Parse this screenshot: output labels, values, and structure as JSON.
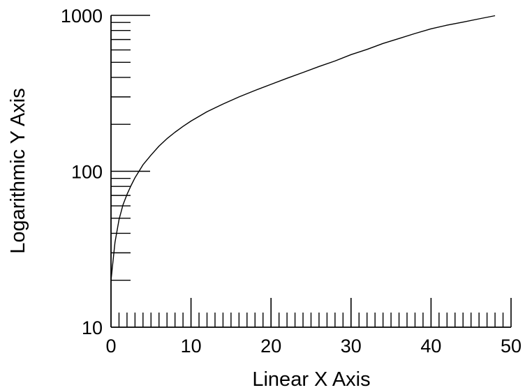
{
  "chart_data": {
    "type": "line",
    "title": "",
    "xlabel": "Linear X Axis",
    "ylabel": "Logarithmic Y Axis",
    "xlim": [
      0,
      50
    ],
    "ylim": [
      10,
      1000
    ],
    "yscale": "log",
    "grid": false,
    "legend": "none",
    "x_tick_labels": [
      "0",
      "10",
      "20",
      "30",
      "40",
      "50"
    ],
    "y_tick_labels": [
      "10",
      "100",
      "1000"
    ],
    "series": [
      {
        "x": [
          0,
          0.5,
          1,
          1.5,
          2,
          2.5,
          3,
          3.5,
          4,
          5,
          6,
          7,
          8,
          9,
          10,
          12,
          14,
          16,
          18,
          20,
          22,
          24,
          26,
          28,
          30,
          32,
          34,
          36,
          38,
          40,
          42,
          44,
          46,
          48
        ],
        "values": [
          20,
          35,
          49,
          61,
          71,
          81,
          91,
          100,
          110,
          127,
          145,
          162,
          178,
          194,
          210,
          241,
          270,
          300,
          330,
          361,
          395,
          430,
          470,
          510,
          560,
          605,
          660,
          710,
          765,
          820,
          865,
          905,
          950,
          995
        ]
      }
    ],
    "line_color": "#000000"
  }
}
